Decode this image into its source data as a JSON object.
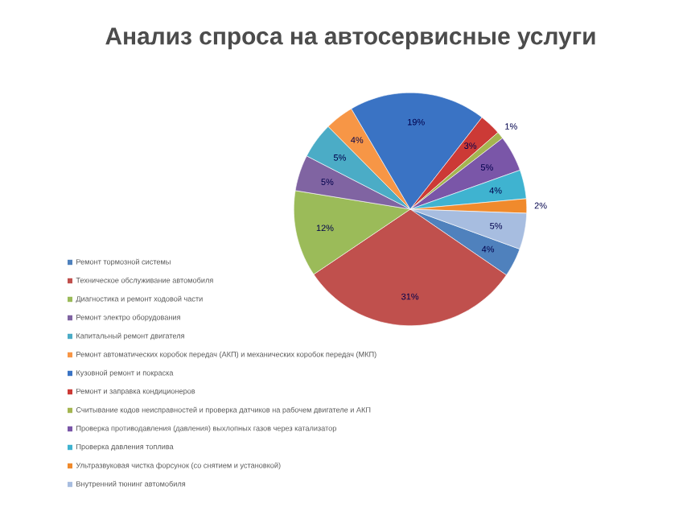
{
  "chart_data": {
    "type": "pie",
    "title": "Анализ спроса на автосервисные услуги",
    "categories": [
      "Ремонт тормозной системы",
      "Техническое обслуживание автомобиля",
      "Диагностика и ремонт ходовой части",
      "Ремонт электро оборудования",
      "Капитальный ремонт двигателя",
      "Ремонт автоматических коробок передач (АКП) и механических коробок передач (МКП)",
      "Кузовной ремонт и покраска",
      "Ремонт и заправка кондиционеров",
      "Считывание кодов неисправностей и проверка датчиков на рабочем двигателе и АКП",
      "Проверка противодавления (давления) выхлопных газов через катализатор",
      "Проверка давления топлива",
      "Ультразвуковая чистка форсунок (со снятием и установкой)",
      "Внутренний тюнинг автомобиля"
    ],
    "values": [
      4,
      31,
      12,
      5,
      5,
      4,
      19,
      3,
      1,
      5,
      4,
      2,
      5
    ],
    "colors": [
      "#4f81bd",
      "#c0504d",
      "#9bbb59",
      "#8064a2",
      "#4bacc6",
      "#f79646",
      "#3a73c4",
      "#cc3a36",
      "#a4b550",
      "#7a56a8",
      "#3fb3d0",
      "#f08a2c",
      "#a7bde0"
    ],
    "value_labels": [
      "4%",
      "31%",
      "12%",
      "5%",
      "5%",
      "4%",
      "19%",
      "3%",
      "1%",
      "5%",
      "4%",
      "2%",
      "5%"
    ],
    "legend": "bottom left"
  }
}
